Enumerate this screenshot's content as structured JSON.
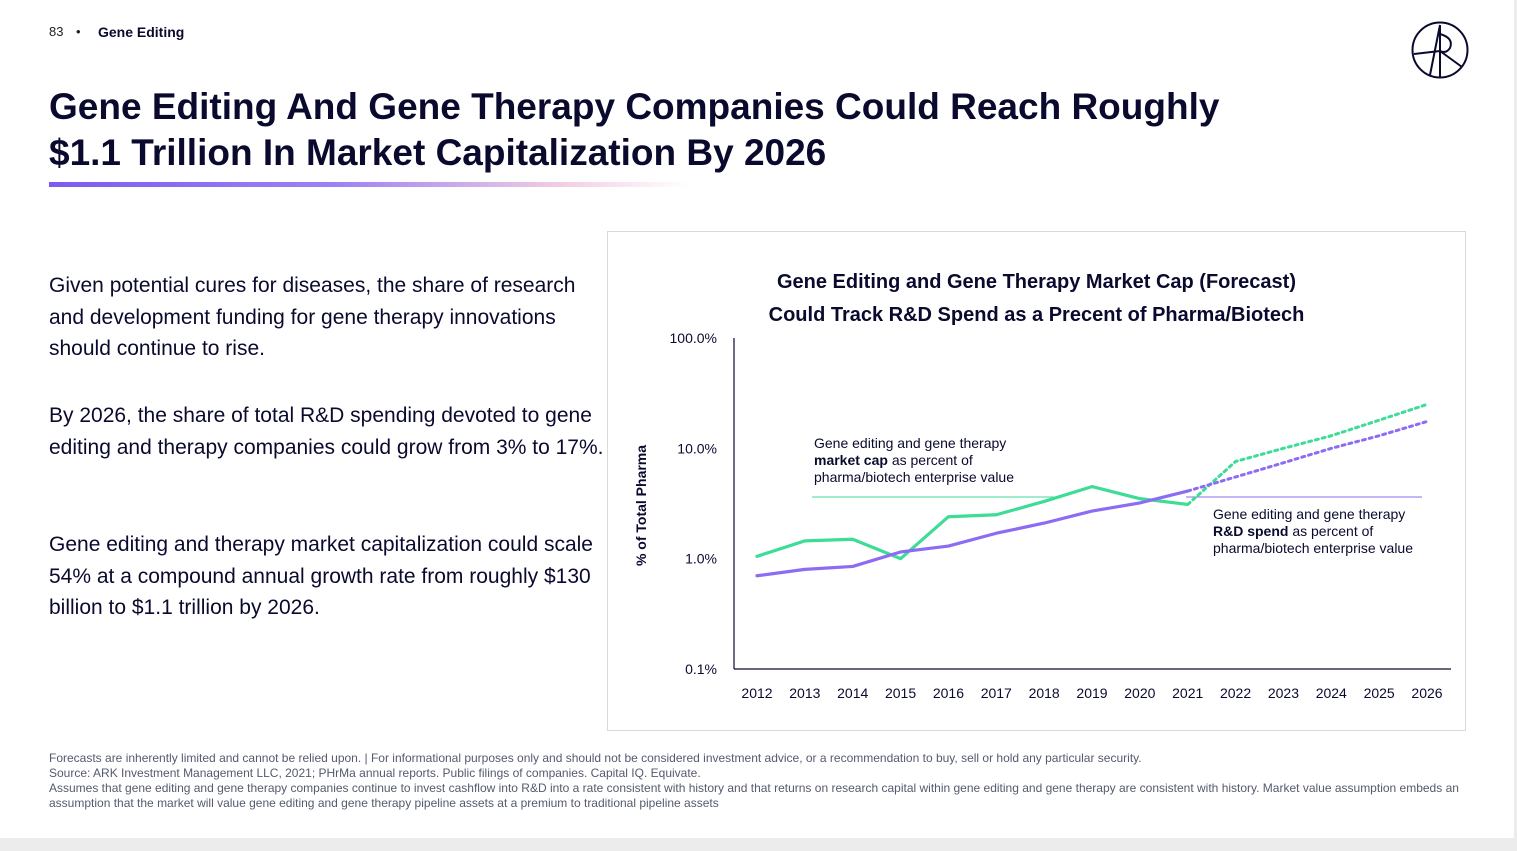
{
  "header": {
    "page_number": "83",
    "separator": "•",
    "section": "Gene Editing"
  },
  "title": {
    "line1": "Gene Editing And Gene Therapy Companies Could Reach Roughly",
    "line2": "$1.1 Trillion In Market Capitalization By 2026"
  },
  "body": {
    "paragraph1": "Given potential cures for diseases, the share of research and development funding for gene therapy innovations should continue to rise.",
    "paragraph2": "By 2026, the share of total R&D spending devoted to gene editing and therapy companies could grow from 3% to 17%.",
    "paragraph3": "Gene editing and therapy market capitalization could scale 54% at a compound annual growth rate from roughly $130 billion to $1.1 trillion by 2026."
  },
  "chart_data": {
    "type": "line",
    "title_line1": "Gene Editing and Gene Therapy Market Cap (Forecast)",
    "title_line2": "Could Track R&D Spend as a Precent of Pharma/Biotech",
    "ylabel": "% of Total Pharma",
    "xlabel": "",
    "y_scale": "log",
    "ylim": [
      0.1,
      100
    ],
    "y_ticks": [
      "100.0%",
      "10.0%",
      "1.0%",
      "0.1%"
    ],
    "x": [
      2012,
      2013,
      2014,
      2015,
      2016,
      2017,
      2018,
      2019,
      2020,
      2021,
      2022,
      2023,
      2024,
      2025,
      2026
    ],
    "forecast_start": 2021,
    "series": [
      {
        "key": "market_cap",
        "color": "#3ddc97",
        "values": [
          1.05,
          1.45,
          1.5,
          1.0,
          2.4,
          2.5,
          3.3,
          4.5,
          3.5,
          3.1,
          7.6,
          10.0,
          13.0,
          18.0,
          25.0
        ],
        "annotation": {
          "line1": "Gene editing and gene therapy",
          "bold": "market cap",
          "rest": " as percent of",
          "line3": "pharma/biotech enterprise value"
        }
      },
      {
        "key": "rd_spend",
        "color": "#8c6cf2",
        "values": [
          0.7,
          0.8,
          0.85,
          1.15,
          1.3,
          1.7,
          2.1,
          2.7,
          3.2,
          4.1,
          5.5,
          7.4,
          10.0,
          13.0,
          17.5
        ],
        "annotation": {
          "line1": "Gene editing and gene therapy",
          "bold": "R&D spend",
          "rest": " as percent of",
          "line3": "pharma/biotech enterprise value"
        }
      }
    ],
    "grid": false,
    "legend": "inline annotations"
  },
  "footnotes": {
    "line1": "Forecasts are inherently limited and cannot be relied upon. | For informational purposes only and should not be considered investment advice, or a recommendation to buy, sell or hold any particular security.",
    "line2": "Source: ARK Investment Management LLC, 2021; PHrMa annual reports. Public filings of companies. Capital IQ. Equivate.",
    "line3": "Assumes that gene editing and gene therapy companies continue to invest cashflow into R&D into a rate consistent with history and that returns on research capital within gene editing and gene therapy are consistent with history. Market value assumption embeds an assumption that the market will value gene editing and gene therapy pipeline assets at a premium to traditional pipeline assets"
  },
  "colors": {
    "navy": "#0a0a2e",
    "accent_purple": "#7b5cf0",
    "market_cap_green": "#3ddc97",
    "rd_spend_purple": "#8c6cf2"
  },
  "logo": {
    "icon": "ark-logo-icon"
  }
}
